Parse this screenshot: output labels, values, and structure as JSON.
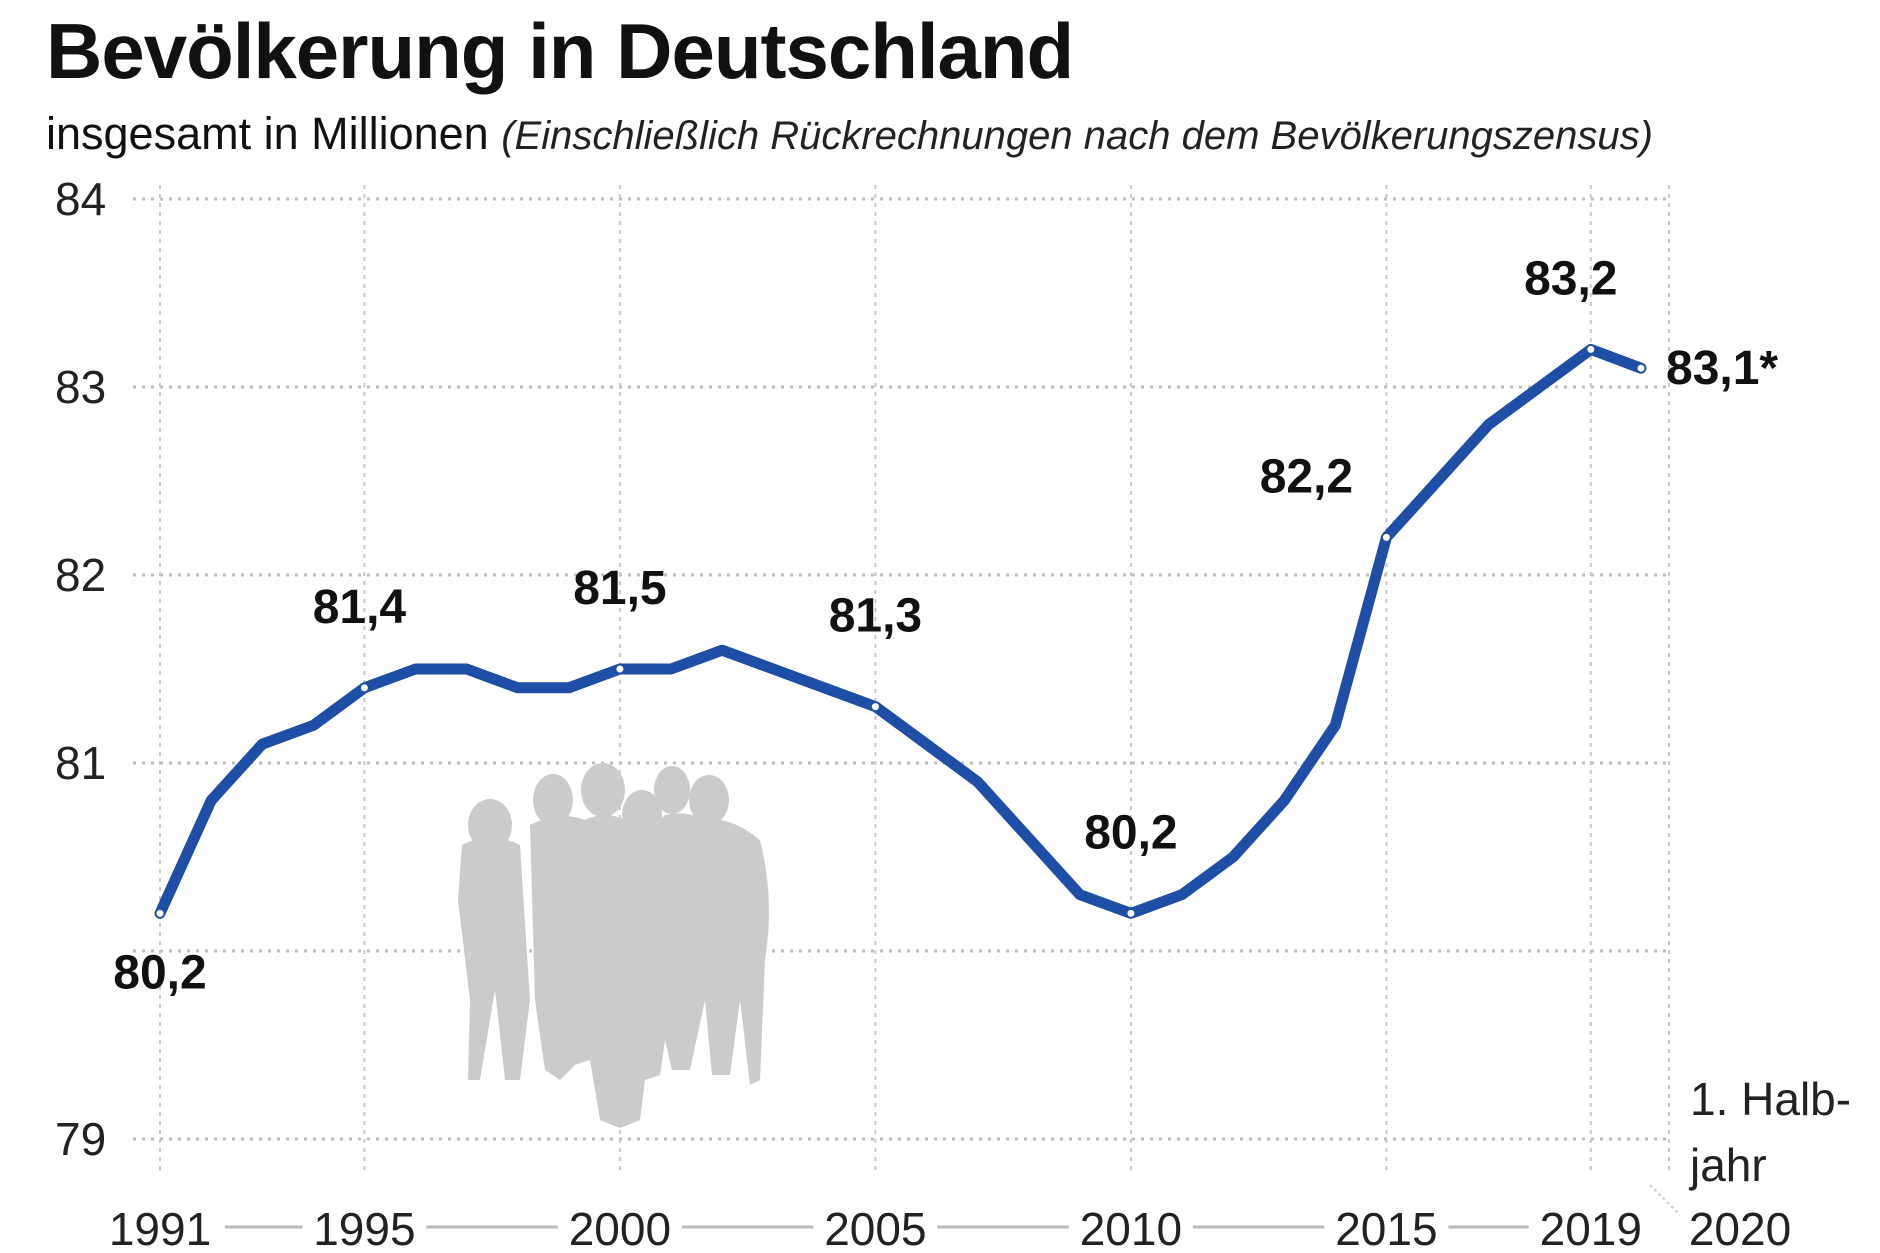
{
  "chart_data": {
    "type": "line",
    "title": "Bevölkerung in Deutschland",
    "subtitle": "insgesamt in Millionen",
    "subtitle_note": "(Einschließlich Rückrechnungen nach dem Bevölkerungszensus)",
    "ylim": [
      79,
      84
    ],
    "y_ticks": [
      "84",
      "83",
      "82",
      "81",
      "79"
    ],
    "x_ticks": [
      "1991",
      "1995",
      "2000",
      "2005",
      "2010",
      "2015",
      "2019",
      "2020"
    ],
    "x_tick_note": [
      "1. Halb-",
      "jahr"
    ],
    "grid": true,
    "line_color": "#1f4ea6",
    "series": [
      {
        "x": [
          1991,
          1992,
          1993,
          1994,
          1995,
          1996,
          1997,
          1998,
          1999,
          2000,
          2001,
          2002,
          2003,
          2004,
          2005,
          2006,
          2007,
          2008,
          2009,
          2010,
          2011,
          2012,
          2013,
          2014,
          2015,
          2016,
          2017,
          2018,
          2019,
          "2020 (1. Halbjahr)"
        ],
        "values": [
          80.2,
          80.8,
          81.1,
          81.2,
          81.4,
          81.5,
          81.5,
          81.4,
          81.4,
          81.5,
          81.5,
          81.6,
          81.5,
          81.4,
          81.3,
          81.1,
          80.9,
          80.6,
          80.3,
          80.2,
          80.3,
          80.5,
          80.8,
          81.2,
          82.2,
          82.5,
          82.8,
          83.0,
          83.2,
          83.1
        ]
      }
    ],
    "data_labels": [
      {
        "x": 1991,
        "text": "80,2"
      },
      {
        "x": 1995,
        "text": "81,4"
      },
      {
        "x": 2000,
        "text": "81,5"
      },
      {
        "x": 2005,
        "text": "81,3"
      },
      {
        "x": 2010,
        "text": "80,2"
      },
      {
        "x": 2015,
        "text": "82,2"
      },
      {
        "x": 2019,
        "text": "83,2"
      },
      {
        "x": "2020 (1. Halbjahr)",
        "text": "83,1*"
      }
    ]
  }
}
